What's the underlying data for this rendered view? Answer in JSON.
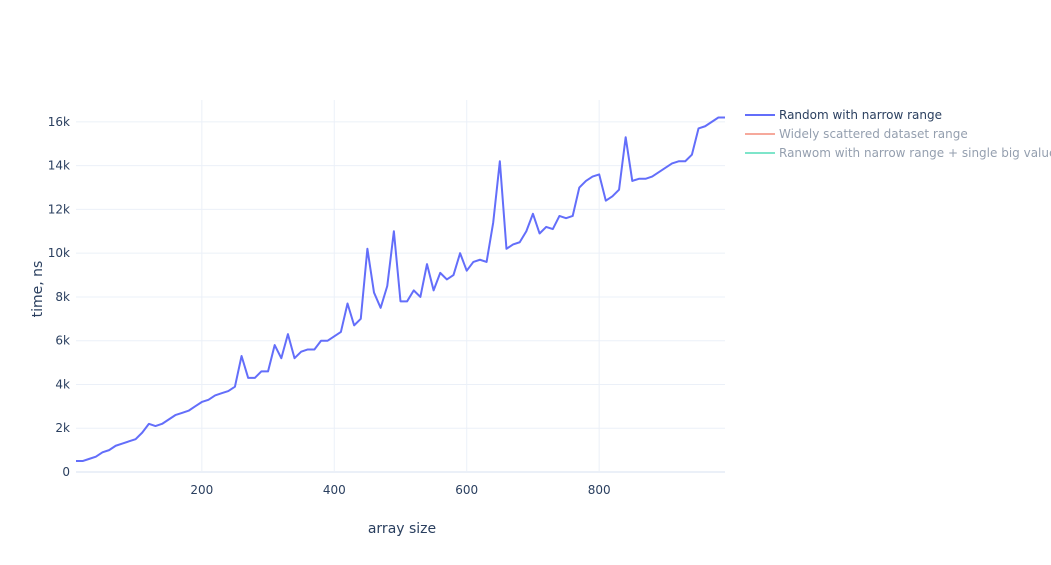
{
  "chart_data": {
    "type": "line",
    "title": "",
    "xlabel": "array size",
    "ylabel": "time, ns",
    "xlim": [
      10,
      990
    ],
    "ylim": [
      0,
      17000
    ],
    "grid": true,
    "legend_position": "top-right",
    "x_ticks": [
      {
        "value": 200,
        "label": "200"
      },
      {
        "value": 400,
        "label": "400"
      },
      {
        "value": 600,
        "label": "600"
      },
      {
        "value": 800,
        "label": "800"
      }
    ],
    "y_ticks": [
      {
        "value": 0,
        "label": "0"
      },
      {
        "value": 2000,
        "label": "2k"
      },
      {
        "value": 4000,
        "label": "4k"
      },
      {
        "value": 6000,
        "label": "6k"
      },
      {
        "value": 8000,
        "label": "8k"
      },
      {
        "value": 10000,
        "label": "10k"
      },
      {
        "value": 12000,
        "label": "12k"
      },
      {
        "value": 14000,
        "label": "14k"
      },
      {
        "value": 16000,
        "label": "16k"
      }
    ],
    "series": [
      {
        "name": "Random with narrow range",
        "color": "#636efa",
        "visible": true,
        "x": [
          10,
          20,
          30,
          40,
          50,
          60,
          70,
          80,
          90,
          100,
          110,
          120,
          130,
          140,
          150,
          160,
          170,
          180,
          190,
          200,
          210,
          220,
          230,
          240,
          250,
          260,
          270,
          280,
          290,
          300,
          310,
          320,
          330,
          340,
          350,
          360,
          370,
          380,
          390,
          400,
          410,
          420,
          430,
          440,
          450,
          460,
          470,
          480,
          490,
          500,
          510,
          520,
          530,
          540,
          550,
          560,
          570,
          580,
          590,
          600,
          610,
          620,
          630,
          640,
          650,
          660,
          670,
          680,
          690,
          700,
          710,
          720,
          730,
          740,
          750,
          760,
          770,
          780,
          790,
          800,
          810,
          820,
          830,
          840,
          850,
          860,
          870,
          880,
          890,
          900,
          910,
          920,
          930,
          940,
          950,
          960,
          970,
          980,
          990
        ],
        "y": [
          500,
          500,
          600,
          700,
          900,
          1000,
          1200,
          1300,
          1400,
          1500,
          1800,
          2200,
          2100,
          2200,
          2400,
          2600,
          2700,
          2800,
          3000,
          3200,
          3300,
          3500,
          3600,
          3700,
          3900,
          5300,
          4300,
          4300,
          4600,
          4600,
          5800,
          5200,
          6300,
          5200,
          5500,
          5600,
          5600,
          6000,
          6000,
          6200,
          6400,
          7700,
          6700,
          7000,
          10200,
          8200,
          7500,
          8500,
          11000,
          7800,
          7800,
          8300,
          8000,
          9500,
          8300,
          9100,
          8800,
          9000,
          10000,
          9200,
          9600,
          9700,
          9600,
          11400,
          14200,
          10200,
          10400,
          10500,
          11000,
          11800,
          10900,
          11200,
          11100,
          11700,
          11600,
          11700,
          13000,
          13300,
          13500,
          13600,
          12400,
          12600,
          12900,
          15300,
          13300,
          13400,
          13400,
          13500,
          13700,
          13900,
          14100,
          14200,
          14200,
          14500,
          15700,
          15800,
          16000,
          16200,
          16200
        ]
      },
      {
        "name": "Widely scattered dataset range",
        "color": "#ef553b",
        "visible": false,
        "x": [],
        "y": []
      },
      {
        "name": "Ranwom with narrow range + single big value",
        "color": "#00cc96",
        "visible": false,
        "x": [],
        "y": []
      }
    ]
  }
}
